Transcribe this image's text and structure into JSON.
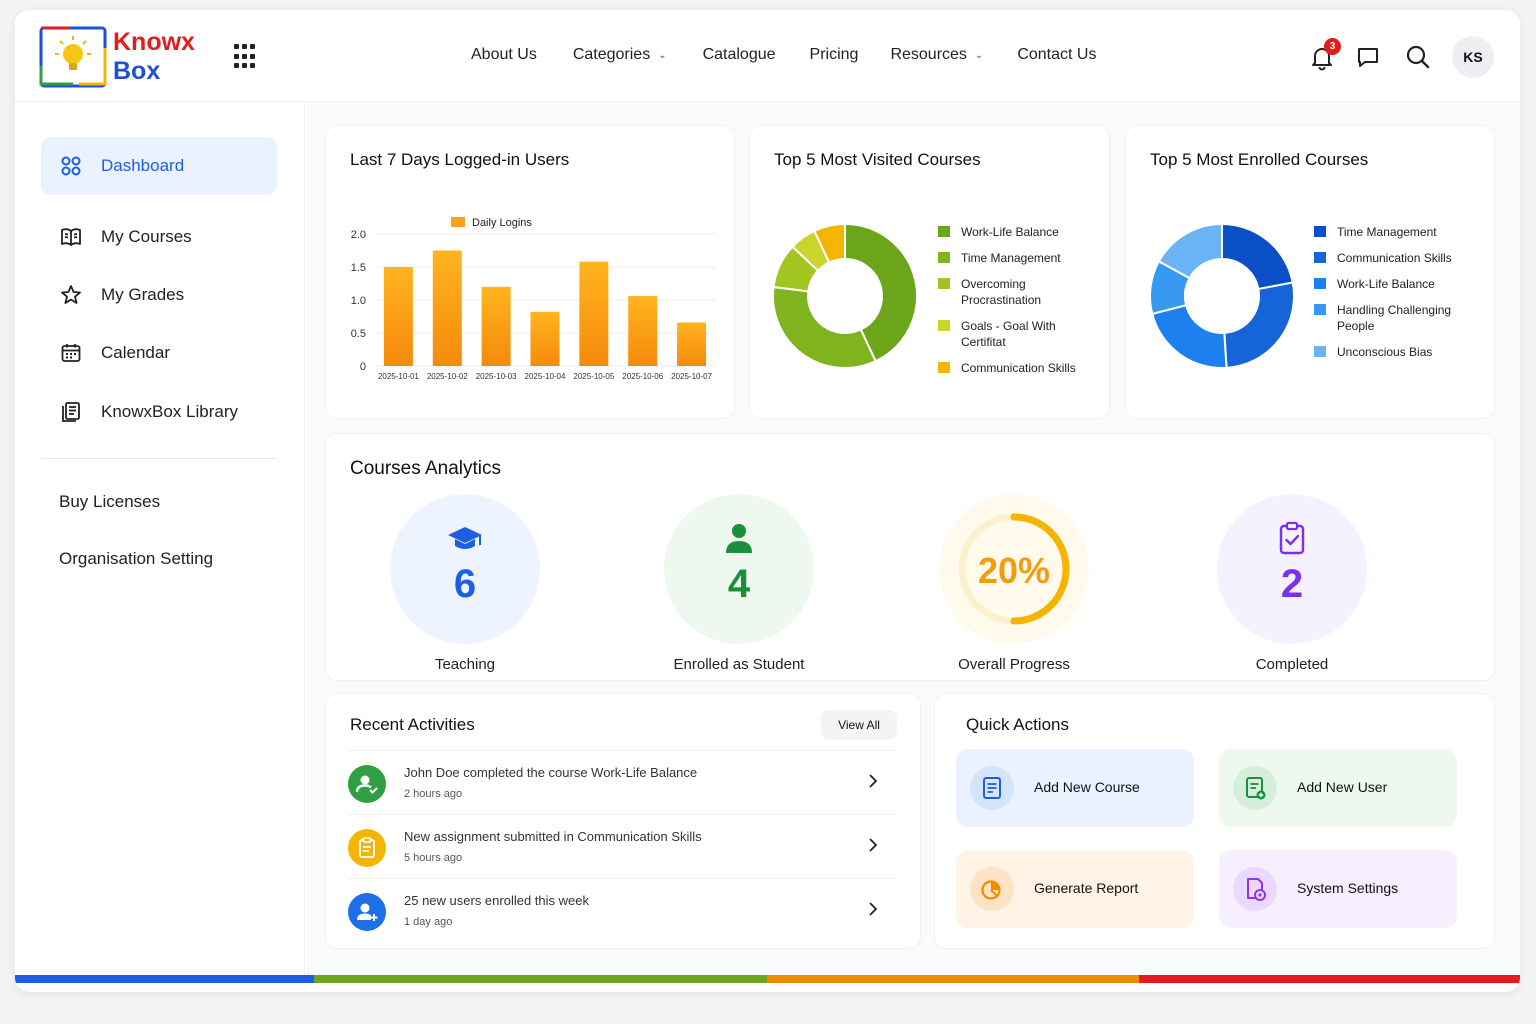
{
  "brand": {
    "line1": "Knowx",
    "line2": "Box"
  },
  "nav": [
    {
      "label": "About Us",
      "dropdown": false
    },
    {
      "label": "Categories",
      "dropdown": true
    },
    {
      "label": "Catalogue",
      "dropdown": false
    },
    {
      "label": "Pricing",
      "dropdown": false
    },
    {
      "label": "Resources",
      "dropdown": true
    },
    {
      "label": "Contact Us",
      "dropdown": false
    }
  ],
  "header": {
    "notification_count": "3",
    "avatar_initials": "KS"
  },
  "sidebar": {
    "items": [
      {
        "label": "Dashboard",
        "icon": "grid-icon",
        "active": true
      },
      {
        "label": "My Courses",
        "icon": "book-icon"
      },
      {
        "label": "My Grades",
        "icon": "star-icon"
      },
      {
        "label": "Calendar",
        "icon": "calendar-icon"
      },
      {
        "label": "KnowxBox Library",
        "icon": "library-icon"
      }
    ],
    "links": [
      "Buy Licenses",
      "Organisation Setting"
    ]
  },
  "cards": {
    "logins_title": "Last 7 Days Logged-in Users",
    "visited_title": "Top 5 Most Visited Courses",
    "enrolled_title": "Top 5 Most Enrolled Courses"
  },
  "chart_data": [
    {
      "type": "bar",
      "categories": [
        "2025-10-01",
        "2025-10-02",
        "2025-10-03",
        "2025-10-04",
        "2025-10-05",
        "2025-10-06",
        "2025-10-07"
      ],
      "series": [
        {
          "name": "Daily Logins",
          "values": [
            1.5,
            1.75,
            1.2,
            0.82,
            1.58,
            1.06,
            0.66
          ]
        }
      ],
      "yticks": [
        "0",
        "0.5",
        "1.0",
        "1.5",
        "2.0"
      ],
      "ylim": [
        0,
        2
      ],
      "legend": "top",
      "grid": true,
      "colors": [
        "#f7a21b"
      ]
    },
    {
      "type": "pie",
      "labels": [
        "Work-Life Balance",
        "Time Management",
        "Overcoming Procrastination",
        "Goals - Goal With Certifitat",
        "Communication Skills"
      ],
      "values": [
        43,
        34,
        10,
        6,
        7
      ],
      "colors": [
        "#6aa51a",
        "#7fb41e",
        "#a2c521",
        "#c9d52d",
        "#f5b400"
      ]
    },
    {
      "type": "pie",
      "labels": [
        "Time Management",
        "Communication Skills",
        "Work-Life Balance",
        "Handling Challenging People",
        "Unconscious Bias"
      ],
      "values": [
        22,
        27,
        22,
        12,
        17
      ],
      "colors": [
        "#0b4fc7",
        "#1565d8",
        "#1e80ee",
        "#3799f0",
        "#6ab4f5"
      ]
    }
  ],
  "analytics": {
    "title": "Courses Analytics",
    "stats": [
      {
        "value": "6",
        "label": "Teaching",
        "icon": "graduation-cap-icon",
        "color": "#1d5fe0"
      },
      {
        "value": "4",
        "label": "Enrolled as Student",
        "icon": "user-icon",
        "color": "#1a8f3c"
      },
      {
        "value": "20%",
        "label": "Overall Progress",
        "progress": 0.2,
        "color": "#f39c12"
      },
      {
        "value": "2",
        "label": "Completed",
        "icon": "clipboard-check-icon",
        "color": "#7b2ff0"
      }
    ]
  },
  "activities": {
    "title": "Recent Activities",
    "view_all": "View All",
    "items": [
      {
        "text": "John Doe completed the course Work-Life Balance",
        "time": "2 hours ago",
        "icon": "user-check-icon",
        "color": "#2ea043"
      },
      {
        "text": "New assignment submitted in Communication Skills",
        "time": "5 hours ago",
        "icon": "clipboard-icon",
        "color": "#f5b400"
      },
      {
        "text": "25 new users enrolled this week",
        "time": "1 day ago",
        "icon": "user-plus-icon",
        "color": "#1d6fe8"
      }
    ]
  },
  "quick_actions": {
    "title": "Quick Actions",
    "items": [
      {
        "label": "Add New Course",
        "icon": "document-icon"
      },
      {
        "label": "Add New User",
        "icon": "user-add-icon"
      },
      {
        "label": "Generate Report",
        "icon": "report-icon"
      },
      {
        "label": "System Settings",
        "icon": "settings-doc-icon"
      }
    ]
  }
}
